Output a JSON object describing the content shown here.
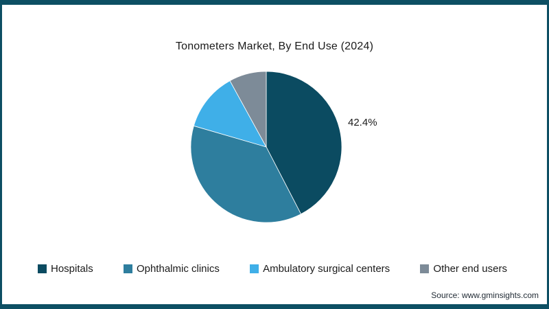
{
  "title": "Tonometers Market, By End Use (2024)",
  "source": "Source: www.gminsights.com",
  "frame_color": "#0d4f63",
  "chart_data": {
    "type": "pie",
    "title": "Tonometers Market, By End Use (2024)",
    "labels": [
      "Hospitals",
      "Ophthalmic clinics",
      "Ambulatory surgical centers",
      "Other end users"
    ],
    "values": [
      42.4,
      37.1,
      12.5,
      8.0
    ],
    "colors": [
      "#0b4b61",
      "#2e7e9e",
      "#3fafe8",
      "#7d8b98"
    ],
    "start_angle_deg": 0,
    "direction": "clockwise",
    "legend_position": "bottom",
    "annotations": [
      {
        "text": "42.4%",
        "slice": "Hospitals",
        "position": "right-of-pie"
      }
    ]
  }
}
